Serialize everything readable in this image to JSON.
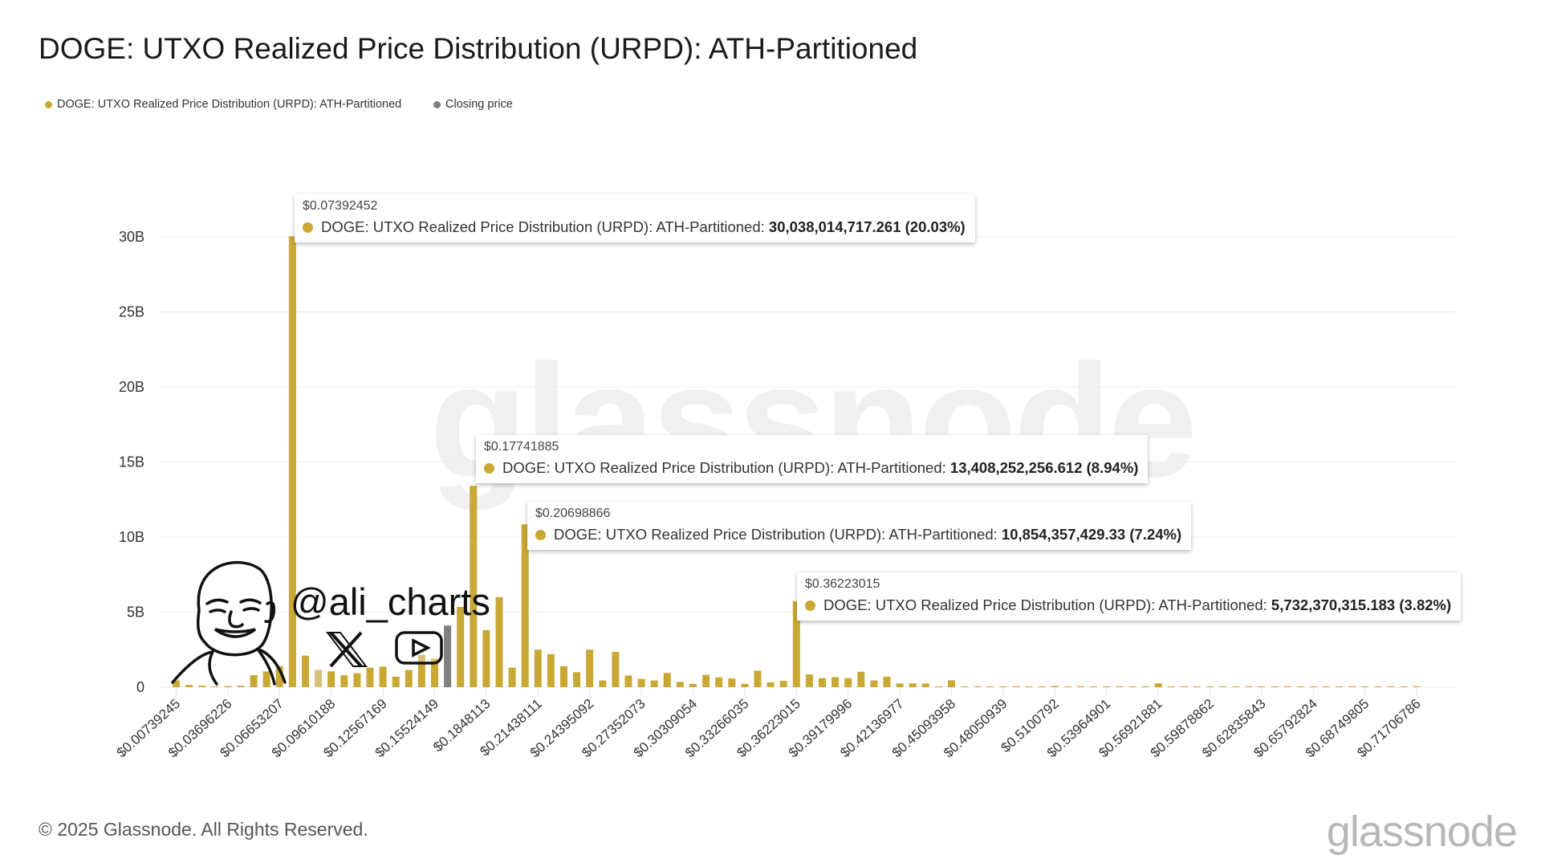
{
  "title": "DOGE: UTXO Realized Price Distribution (URPD): ATH-Partitioned",
  "legend": [
    {
      "label": "DOGE: UTXO Realized Price Distribution (URPD): ATH-Partitioned",
      "color": "#C9A833"
    },
    {
      "label": "Closing price",
      "color": "#7f7f7f"
    }
  ],
  "watermark": "glassnode",
  "author_watermark": {
    "handle": "@ali_charts",
    "icons": [
      "cartoon-face-icon",
      "x-logo-icon",
      "youtube-icon"
    ]
  },
  "footer": "© 2025 Glassnode. All Rights Reserved.",
  "logo": "glassnode",
  "colors": {
    "bar": "#C9A833",
    "closing_bar": "#808080",
    "light_bar": "#D6C27A",
    "grid": "#ececec"
  },
  "tooltips": [
    {
      "price": "$0.07392452",
      "series": "DOGE: UTXO Realized Price Distribution (URPD): ATH-Partitioned:",
      "value": "30,038,014,717.261 (20.03%)"
    },
    {
      "price": "$0.17741885",
      "series": "DOGE: UTXO Realized Price Distribution (URPD): ATH-Partitioned:",
      "value": "13,408,252,256.612 (8.94%)"
    },
    {
      "price": "$0.20698866",
      "series": "DOGE: UTXO Realized Price Distribution (URPD): ATH-Partitioned:",
      "value": "10,854,357,429.33 (7.24%)"
    },
    {
      "price": "$0.36223015",
      "series": "DOGE: UTXO Realized Price Distribution (URPD): ATH-Partitioned:",
      "value": "5,732,370,315.183 (3.82%)"
    }
  ],
  "chart_data": {
    "type": "bar",
    "title": "DOGE: UTXO Realized Price Distribution (URPD): ATH-Partitioned",
    "xlabel": "",
    "ylabel": "",
    "ylim": [
      0,
      30000000000
    ],
    "y_ticks": [
      "0",
      "5B",
      "10B",
      "15B",
      "20B",
      "25B",
      "30B"
    ],
    "y_tick_values": [
      0,
      5,
      10,
      15,
      20,
      25,
      30
    ],
    "y_unit": "B",
    "grid": true,
    "legend_placement": "top-left",
    "x_tick_labels": [
      "$0.00739245",
      "$0.03696226",
      "$0.06653207",
      "$0.09610188",
      "$0.12567169",
      "$0.15524149",
      "$0.1848113",
      "$0.21438111",
      "$0.24395092",
      "$0.27352073",
      "$0.30309054",
      "$0.33266035",
      "$0.36223015",
      "$0.39179996",
      "$0.42136977",
      "$0.45093958",
      "$0.48050939",
      "$0.5100792",
      "$0.53964901",
      "$0.56921881",
      "$0.59878862",
      "$0.62835843",
      "$0.65792824",
      "$0.68749805",
      "$0.71706786"
    ],
    "x_tick_every": 4,
    "series": [
      {
        "name": "DOGE: UTXO Realized Price Distribution (URPD): ATH-Partitioned",
        "values_B": [
          0.45,
          0.15,
          0.1,
          0.05,
          0.07,
          0.1,
          0.8,
          1.05,
          1.4,
          30.04,
          2.1,
          1.15,
          1.05,
          0.8,
          0.93,
          1.3,
          1.37,
          0.7,
          1.15,
          2.15,
          1.9,
          4.1,
          5.35,
          13.41,
          3.8,
          6.0,
          1.3,
          10.85,
          2.5,
          2.2,
          1.4,
          1.0,
          2.5,
          0.45,
          2.35,
          0.78,
          0.55,
          0.45,
          0.95,
          0.35,
          0.22,
          0.82,
          0.65,
          0.58,
          0.22,
          1.1,
          0.32,
          0.42,
          5.73,
          0.85,
          0.6,
          0.67,
          0.6,
          1.03,
          0.45,
          0.7,
          0.25,
          0.25,
          0.25,
          0.04,
          0.46,
          0.05,
          0.04,
          0.03,
          0.02,
          0.03,
          0.02,
          0.03,
          0.08,
          0.05,
          0.02,
          0.01,
          0.02,
          0.03,
          0.02,
          0.03,
          0.25,
          0.02,
          0.01,
          0.01,
          0.01,
          0.02,
          0.01,
          0.03,
          0.03,
          0.01,
          0.01,
          0.01,
          0.03,
          0.01,
          0.01,
          0.01,
          0.03,
          0.01,
          0.02,
          0.03,
          0.02
        ]
      }
    ],
    "closing_price_bin_index": 21,
    "light_bin_index": 11,
    "highlighted_points": [
      {
        "x": "$0.07392452",
        "value": 30038014717.261,
        "share": "20.03%"
      },
      {
        "x": "$0.17741885",
        "value": 13408252256.612,
        "share": "8.94%"
      },
      {
        "x": "$0.20698866",
        "value": 10854357429.33,
        "share": "7.24%"
      },
      {
        "x": "$0.36223015",
        "value": 5732370315.183,
        "share": "3.82%"
      }
    ]
  }
}
